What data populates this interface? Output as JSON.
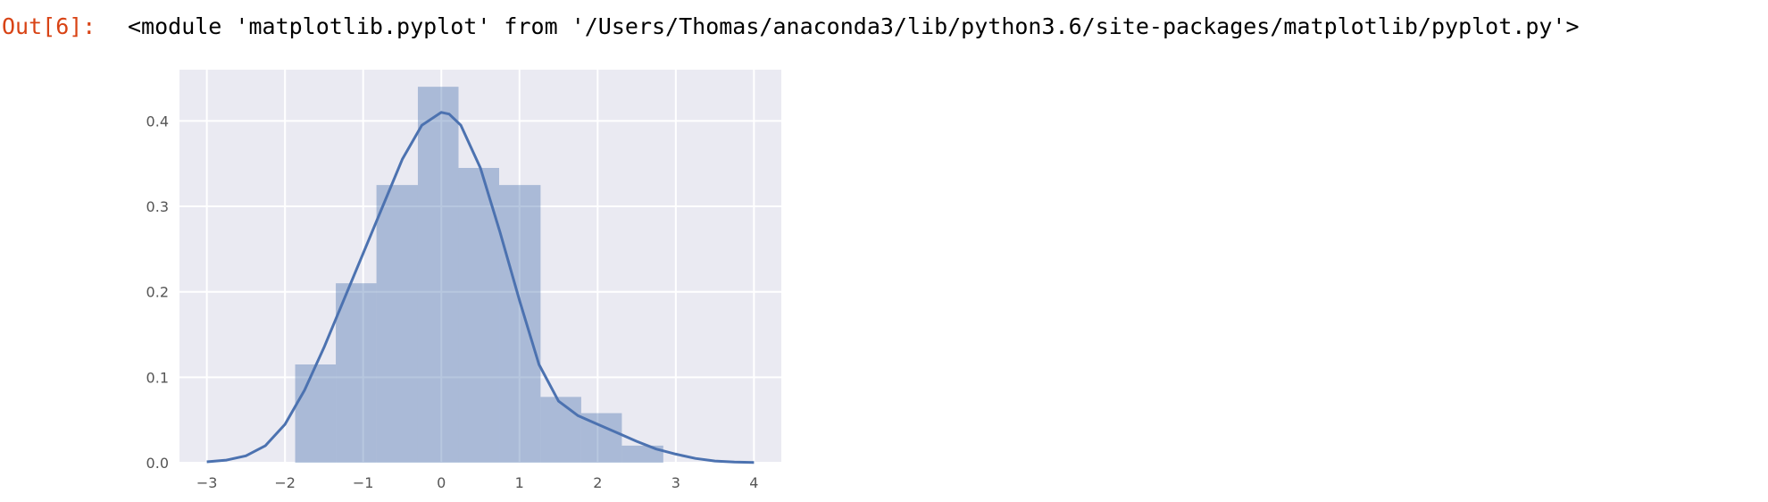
{
  "output": {
    "prompt": "Out[6]:",
    "text": "<module 'matplotlib.pyplot' from '/Users/Thomas/anaconda3/lib/python3.6/site-packages/matplotlib/pyplot.py'>"
  },
  "chart_data": {
    "type": "bar",
    "title": "",
    "xlabel": "",
    "ylabel": "",
    "xlim": [
      -3.35,
      4.35
    ],
    "ylim": [
      0,
      0.46
    ],
    "grid": true,
    "x_ticks": [
      -3,
      -2,
      -1,
      0,
      1,
      2,
      3,
      4
    ],
    "x_tick_labels": [
      "−3",
      "−2",
      "−1",
      "0",
      "1",
      "2",
      "3",
      "4"
    ],
    "y_ticks": [
      0.0,
      0.1,
      0.2,
      0.3,
      0.4
    ],
    "y_tick_labels": [
      "0.0",
      "0.1",
      "0.2",
      "0.3",
      "0.4"
    ],
    "histogram": {
      "bin_edges": [
        -1.87,
        -1.35,
        -0.83,
        -0.3,
        0.22,
        0.74,
        1.27,
        1.79,
        2.31,
        2.84
      ],
      "values": [
        0.115,
        0.21,
        0.325,
        0.44,
        0.345,
        0.325,
        0.077,
        0.058,
        0.02
      ]
    },
    "kde": {
      "x": [
        -3.0,
        -2.75,
        -2.5,
        -2.25,
        -2.0,
        -1.75,
        -1.5,
        -1.25,
        -1.0,
        -0.75,
        -0.5,
        -0.25,
        0.0,
        0.1,
        0.25,
        0.5,
        0.75,
        1.0,
        1.25,
        1.5,
        1.75,
        2.0,
        2.25,
        2.5,
        2.75,
        3.0,
        3.25,
        3.5,
        3.75,
        4.0
      ],
      "y": [
        0.001,
        0.003,
        0.008,
        0.02,
        0.045,
        0.085,
        0.135,
        0.19,
        0.245,
        0.3,
        0.355,
        0.395,
        0.41,
        0.408,
        0.395,
        0.345,
        0.27,
        0.19,
        0.115,
        0.072,
        0.055,
        0.045,
        0.035,
        0.025,
        0.016,
        0.01,
        0.005,
        0.002,
        0.0008,
        0.0002
      ]
    },
    "colors": {
      "background": "#eaeaf2",
      "grid": "#ffffff",
      "bars": "#4c72b0",
      "kde_line": "#4c72b0"
    }
  }
}
